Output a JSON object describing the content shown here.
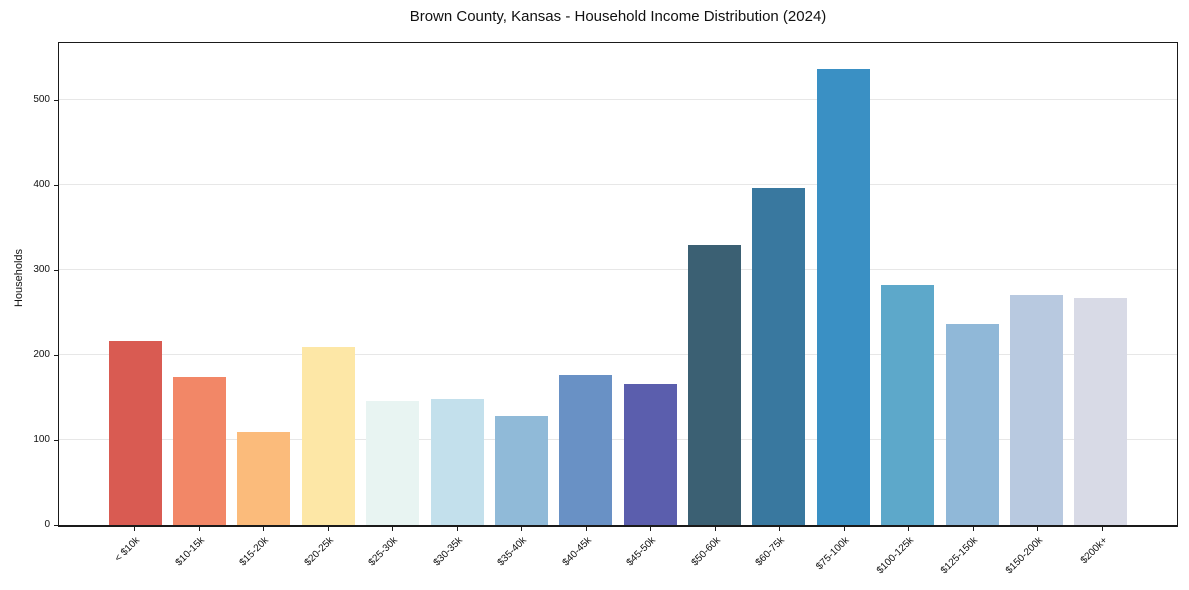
{
  "figure": {
    "background": "#ffffff"
  },
  "chart_data": {
    "type": "bar",
    "title": "Brown County, Kansas - Household Income Distribution (2024)",
    "xlabel": "",
    "ylabel": "Households",
    "categories": [
      "< $10k",
      "$10-15k",
      "$15-20k",
      "$20-25k",
      "$25-30k",
      "$30-35k",
      "$35-40k",
      "$40-45k",
      "$45-50k",
      "$50-60k",
      "$60-75k",
      "$75-100k",
      "$100-125k",
      "$125-150k",
      "$150-200k",
      "$200k+"
    ],
    "values": [
      217,
      174,
      110,
      209,
      146,
      148,
      128,
      177,
      166,
      329,
      397,
      537,
      282,
      236,
      270,
      267
    ],
    "bar_colors": [
      "#d95b52",
      "#f28767",
      "#fbbb7b",
      "#fde7a6",
      "#e8f4f2",
      "#c3e0ec",
      "#90bad8",
      "#6991c5",
      "#5b5ead",
      "#3b6073",
      "#39789f",
      "#3a90c4",
      "#5da8ca",
      "#90b8d8",
      "#b8c9e0",
      "#d8dae6"
    ],
    "ylim": [
      0,
      567
    ],
    "y_ticks": [
      0,
      100,
      200,
      300,
      400,
      500
    ],
    "grid": "horizontal",
    "gridline_color": "#e7e7e7",
    "legend": "none",
    "x_tick_label_rotation_deg": 45
  }
}
